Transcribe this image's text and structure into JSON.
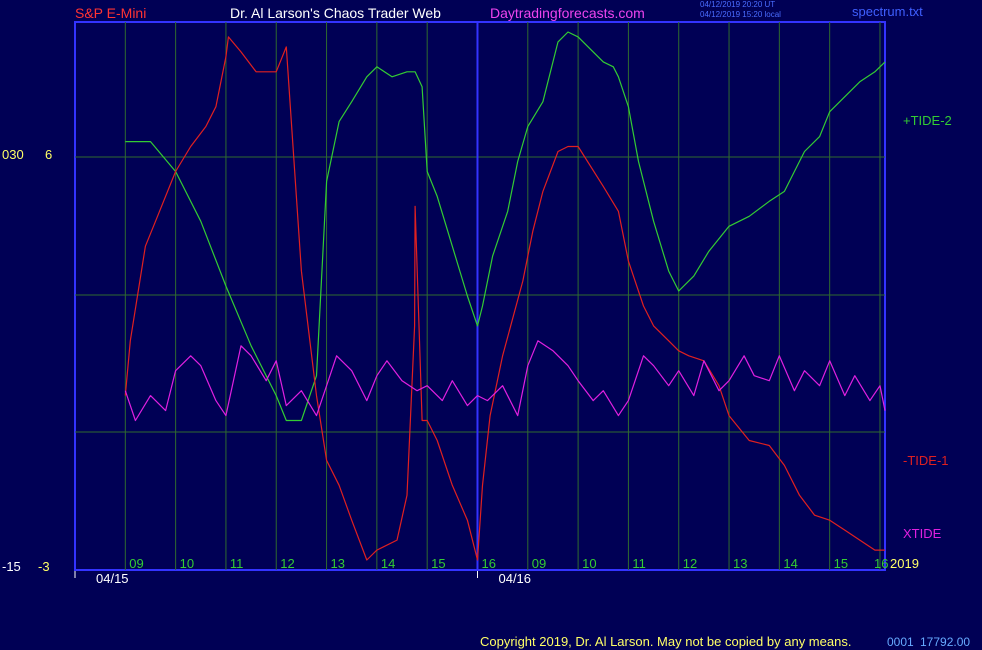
{
  "header": {
    "instrument": "S&P E-Mini",
    "author": "Dr. Al Larson's Chaos Trader Web",
    "site": "Daytradingforecasts.com",
    "ts_ut": "04/12/2019 20:20 UT",
    "ts_local": "04/12/2019 15:20 local",
    "file": "spectrum.txt"
  },
  "y_labels": {
    "upper_left": "030",
    "upper_right": "6",
    "lower_left": "-15",
    "lower_right": "-3"
  },
  "colors": {
    "background": "#000055",
    "frame": "#3333ff",
    "grid": "#2f6a2f",
    "tide2": "#33cc33",
    "tide1": "#e02020",
    "xtide": "#e020e0",
    "axis_text": "#33cc33",
    "white_text": "#ffffff",
    "yellow_text": "#ffff66"
  },
  "footer": {
    "copyright": "Copyright 2019, Dr. Al Larson. May not be copied by any means.",
    "code": "0001",
    "value": "17792.00"
  },
  "chart_data": {
    "type": "line",
    "x_axis": {
      "day1_hours": [
        "09",
        "10",
        "11",
        "12",
        "13",
        "14",
        "15",
        "16"
      ],
      "day2_hours": [
        "09",
        "10",
        "11",
        "12",
        "13",
        "14",
        "15",
        "16"
      ],
      "dates": [
        "04/15",
        "04/16"
      ],
      "year": "2019"
    },
    "grid": true,
    "ylim": [
      -4,
      7
    ],
    "series": [
      {
        "name": "+TIDE-2",
        "color": "#33cc33",
        "x": [
          9.0,
          9.5,
          10.0,
          10.5,
          11.0,
          11.5,
          12.0,
          12.2,
          12.5,
          12.8,
          13.0,
          13.25,
          13.5,
          13.8,
          14.0,
          14.3,
          14.6,
          14.75,
          14.76,
          14.9,
          15.0,
          15.2,
          15.5,
          15.8,
          16.0,
          16.1,
          16.3,
          16.6,
          16.8,
          17.0,
          17.3,
          17.6,
          17.8,
          18.0,
          18.3,
          18.5,
          18.7,
          18.8,
          19.0,
          19.2,
          19.5,
          19.8,
          20.0,
          20.3,
          20.6,
          21.0,
          21.4,
          21.8,
          22.1,
          22.3,
          22.5,
          22.8,
          23.0,
          23.3,
          23.6,
          23.9,
          24.1
        ],
        "values": [
          4.6,
          4.6,
          4.0,
          3.0,
          1.7,
          0.5,
          -0.5,
          -1.0,
          -1.0,
          -0.1,
          3.8,
          5.0,
          5.4,
          5.9,
          6.1,
          5.9,
          6.0,
          6.0,
          6.0,
          5.7,
          4.0,
          3.5,
          2.5,
          1.5,
          0.9,
          1.3,
          2.3,
          3.2,
          4.2,
          4.9,
          5.4,
          6.6,
          6.8,
          6.7,
          6.4,
          6.2,
          6.1,
          5.9,
          5.3,
          4.2,
          3.0,
          2.0,
          1.6,
          1.9,
          2.4,
          2.9,
          3.1,
          3.4,
          3.6,
          4.0,
          4.4,
          4.7,
          5.2,
          5.5,
          5.8,
          6.0,
          6.2
        ]
      },
      {
        "name": "-TIDE-1",
        "color": "#e02020",
        "x": [
          9.0,
          9.1,
          9.4,
          9.6,
          10.0,
          10.3,
          10.6,
          10.8,
          10.9,
          11.0,
          11.05,
          11.3,
          11.6,
          12.0,
          12.2,
          12.5,
          12.8,
          13.0,
          13.25,
          13.5,
          13.8,
          14.0,
          14.4,
          14.6,
          14.75,
          14.76,
          14.9,
          15.0,
          15.2,
          15.5,
          15.8,
          16.0,
          16.1,
          16.25,
          16.5,
          16.9,
          17.1,
          17.3,
          17.6,
          17.8,
          18.0,
          18.5,
          18.8,
          19.0,
          19.3,
          19.5,
          19.8,
          20.0,
          20.2,
          20.5,
          20.8,
          21.0,
          21.4,
          21.8,
          22.1,
          22.4,
          22.7,
          23.0,
          23.3,
          23.6,
          23.9,
          24.1
        ],
        "values": [
          -0.5,
          0.6,
          2.5,
          3.0,
          4.0,
          4.5,
          4.9,
          5.3,
          5.8,
          6.3,
          6.7,
          6.4,
          6.0,
          6.0,
          6.5,
          2.0,
          -0.5,
          -1.8,
          -2.3,
          -3.0,
          -3.8,
          -3.6,
          -3.4,
          -2.5,
          0.9,
          3.3,
          -1.0,
          -1.0,
          -1.4,
          -2.3,
          -3.0,
          -3.8,
          -2.3,
          -0.9,
          0.3,
          1.8,
          2.8,
          3.6,
          4.4,
          4.5,
          4.5,
          3.7,
          3.2,
          2.2,
          1.3,
          0.9,
          0.6,
          0.4,
          0.3,
          0.2,
          -0.3,
          -0.9,
          -1.4,
          -1.5,
          -1.9,
          -2.5,
          -2.9,
          -3.0,
          -3.2,
          -3.4,
          -3.6,
          -3.6
        ]
      },
      {
        "name": "XTIDE",
        "color": "#e020e0",
        "x": [
          9.0,
          9.2,
          9.5,
          9.8,
          10.0,
          10.3,
          10.5,
          10.8,
          11.0,
          11.3,
          11.5,
          11.8,
          12.0,
          12.2,
          12.5,
          12.8,
          13.0,
          13.2,
          13.5,
          13.8,
          14.0,
          14.2,
          14.5,
          14.8,
          15.0,
          15.3,
          15.5,
          15.8,
          16.0,
          16.2,
          16.5,
          16.8,
          17.0,
          17.2,
          17.5,
          17.8,
          18.0,
          18.3,
          18.5,
          18.8,
          19.0,
          19.3,
          19.5,
          19.8,
          20.0,
          20.3,
          20.5,
          20.8,
          21.0,
          21.3,
          21.5,
          21.8,
          22.0,
          22.3,
          22.5,
          22.8,
          23.0,
          23.3,
          23.5,
          23.8,
          24.0,
          24.1
        ],
        "values": [
          -0.4,
          -1.0,
          -0.5,
          -0.8,
          0.0,
          0.3,
          0.1,
          -0.6,
          -0.9,
          0.5,
          0.3,
          -0.2,
          0.2,
          -0.7,
          -0.4,
          -0.9,
          -0.3,
          0.3,
          0.0,
          -0.6,
          -0.1,
          0.2,
          -0.2,
          -0.4,
          -0.3,
          -0.6,
          -0.2,
          -0.7,
          -0.5,
          -0.6,
          -0.3,
          -0.9,
          0.1,
          0.6,
          0.4,
          0.1,
          -0.2,
          -0.6,
          -0.4,
          -0.9,
          -0.6,
          0.3,
          0.1,
          -0.3,
          0.0,
          -0.5,
          0.2,
          -0.4,
          -0.2,
          0.3,
          -0.1,
          -0.2,
          0.3,
          -0.4,
          0.0,
          -0.3,
          0.2,
          -0.5,
          -0.1,
          -0.6,
          -0.3,
          -0.8
        ]
      }
    ]
  }
}
